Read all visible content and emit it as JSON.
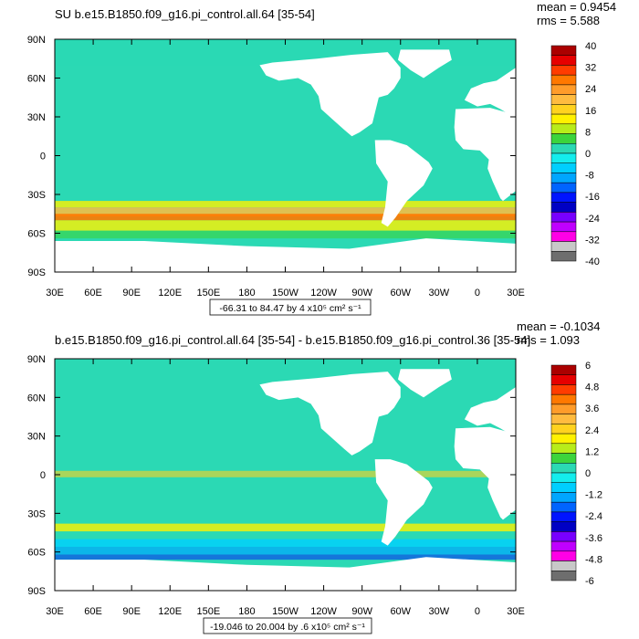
{
  "chart_data": [
    {
      "type": "heatmap",
      "title": "SU b.e15.B1850.f09_g16.pi_control.all.64 [35-54]",
      "stats": {
        "mean": "mean = 0.9454",
        "rms": "rms = 5.588"
      },
      "x_ticks": [
        "30E",
        "60E",
        "90E",
        "120E",
        "150E",
        "180",
        "150W",
        "120W",
        "90W",
        "60W",
        "30W",
        "0",
        "30E"
      ],
      "y_ticks": [
        "90N",
        "60N",
        "30N",
        "0",
        "30S",
        "60S",
        "90S"
      ],
      "range_note": "-66.31 to 84.47 by 4 x10⁵ cm² s⁻¹",
      "colorbar": {
        "labels": [
          "40",
          "32",
          "24",
          "16",
          "8",
          "0",
          "-8",
          "-16",
          "-24",
          "-32",
          "-40"
        ],
        "min": -40,
        "max": 40,
        "step": 8
      }
    },
    {
      "type": "heatmap",
      "title": "b.e15.B1850.f09_g16.pi_control.all.64 [35-54] - b.e15.B1850.f09_g16.pi_control.36 [35-54]",
      "stats": {
        "mean": "mean = -0.1034",
        "rms": "rms = 1.093"
      },
      "x_ticks": [
        "30E",
        "60E",
        "90E",
        "120E",
        "150E",
        "180",
        "150W",
        "120W",
        "90W",
        "60W",
        "30W",
        "0",
        "30E"
      ],
      "y_ticks": [
        "90N",
        "60N",
        "30N",
        "0",
        "30S",
        "60S",
        "90S"
      ],
      "range_note": "-19.046 to 20.004 by .6 x10⁵ cm² s⁻¹",
      "colorbar": {
        "labels": [
          "6",
          "4.8",
          "3.6",
          "2.4",
          "1.2",
          "0",
          "-1.2",
          "-2.4",
          "-3.6",
          "-4.8",
          "-6"
        ],
        "min": -6,
        "max": 6,
        "step": 1.2
      }
    }
  ],
  "colors": {
    "ocean_base": "#2bd9b4",
    "palette": [
      "#ab0000",
      "#e60000",
      "#ff3c00",
      "#ff7800",
      "#ff9c2a",
      "#ffbb3f",
      "#ffd21f",
      "#fff100",
      "#b8ec1a",
      "#3cd43c",
      "#2bd9b4",
      "#14eded",
      "#00cfff",
      "#00a6ff",
      "#0064ff",
      "#0014ff",
      "#0000c4",
      "#7800ff",
      "#c000ff",
      "#ff00e6",
      "#c8c8c8",
      "#6e6e6e"
    ]
  }
}
